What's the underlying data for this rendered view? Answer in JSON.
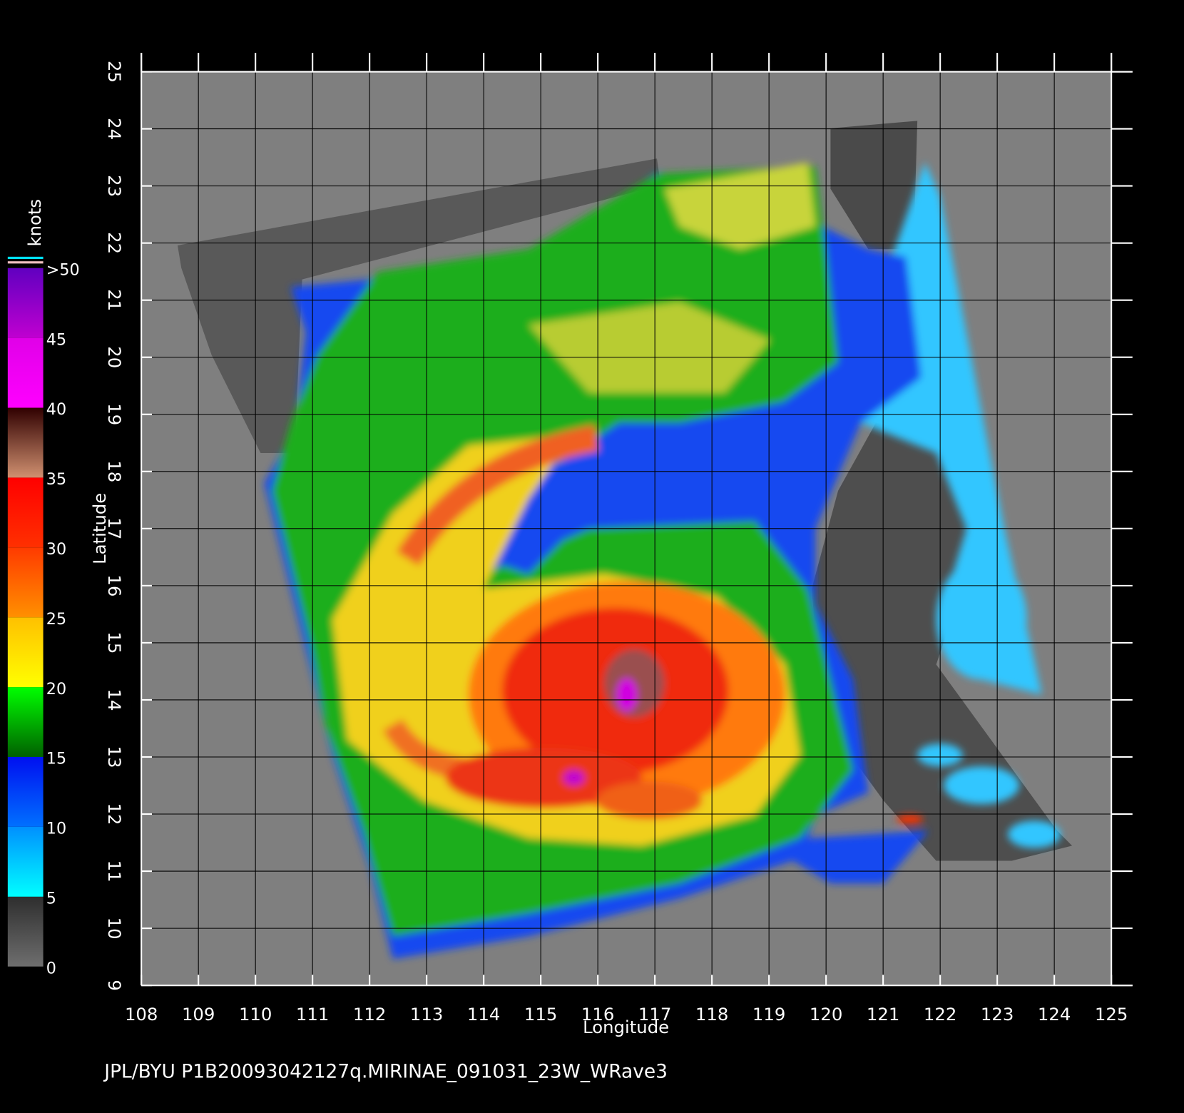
{
  "chart_data": {
    "type": "map",
    "xlabel": "Longitude",
    "ylabel": "Latitude",
    "xlim": [
      108,
      125
    ],
    "xticks": [
      108,
      109,
      110,
      111,
      112,
      113,
      114,
      115,
      116,
      117,
      118,
      119,
      120,
      121,
      122,
      123,
      124,
      125
    ],
    "ylim": [
      9,
      25
    ],
    "yticks": [
      9,
      10,
      11,
      12,
      13,
      14,
      15,
      16,
      17,
      18,
      19,
      20,
      21,
      22,
      23,
      24,
      25
    ],
    "grid": true,
    "colorbar": {
      "label": "knots",
      "ticks": [
        0,
        5,
        10,
        15,
        20,
        25,
        30,
        35,
        40,
        45,
        {
          "value": 50,
          "label": ">50"
        }
      ],
      "colors": [
        [
          "#6e6e6e",
          "#2e2e2e"
        ],
        [
          "#00ffff",
          "#0090ff"
        ],
        [
          "#0070ff",
          "#0010f0"
        ],
        [
          "#006000",
          "#00ff00"
        ],
        [
          "#ffff00",
          "#ffc000"
        ],
        [
          "#ff9000",
          "#ff3a00"
        ],
        [
          "#ff3000",
          "#ff0000"
        ],
        [
          "#d09070",
          "#300000"
        ],
        [
          "#ff00ff",
          "#e000e8"
        ],
        [
          "#c000d0",
          "#6000c0"
        ]
      ]
    },
    "footer": "JPL/BYU  P1B20093042127q.MIRINAE_091031_23W_WRave3"
  }
}
